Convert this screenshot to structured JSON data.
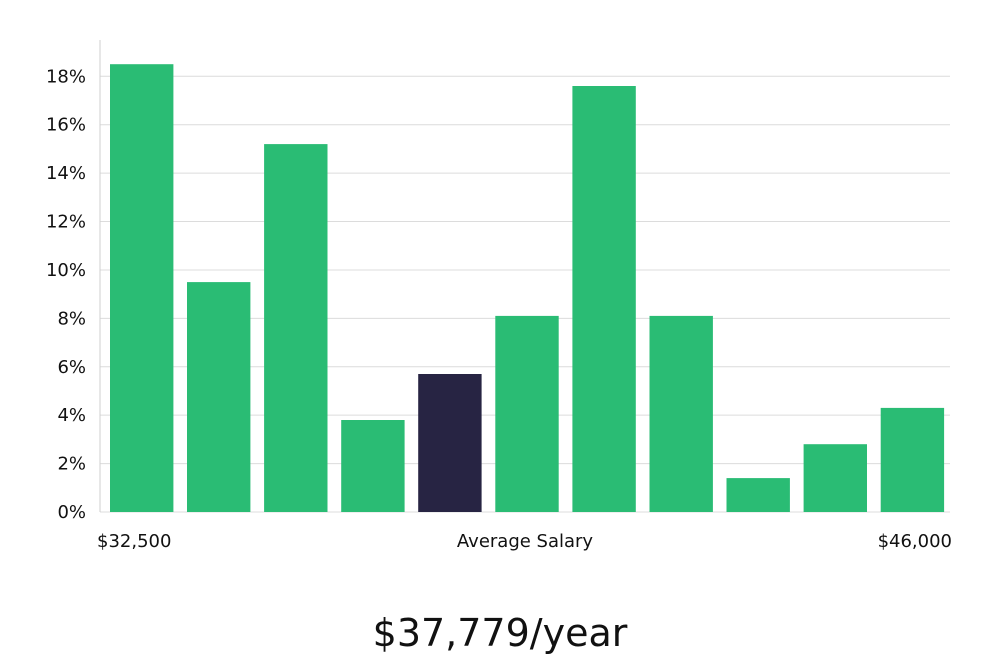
{
  "colors": {
    "bar": "#2abc74",
    "highlight_bar": "#272443",
    "grid": "#dcdcdc"
  },
  "chart_data": {
    "type": "bar",
    "categories": [
      "1",
      "2",
      "3",
      "4",
      "5",
      "6",
      "7",
      "8",
      "9",
      "10",
      "11"
    ],
    "values": [
      18.5,
      9.5,
      15.2,
      3.8,
      5.7,
      8.1,
      17.6,
      8.1,
      1.4,
      2.8,
      4.3
    ],
    "highlight_index": 4,
    "ylim": [
      0,
      19.5
    ],
    "yticks": [
      0,
      2,
      4,
      6,
      8,
      10,
      12,
      14,
      16,
      18
    ],
    "ytick_suffix": "%",
    "x_start_label": "$32,500",
    "xlabel": "Average Salary",
    "x_end_label": "$46,000",
    "grid": true,
    "legend": "none"
  },
  "caption": "$37,779/year"
}
